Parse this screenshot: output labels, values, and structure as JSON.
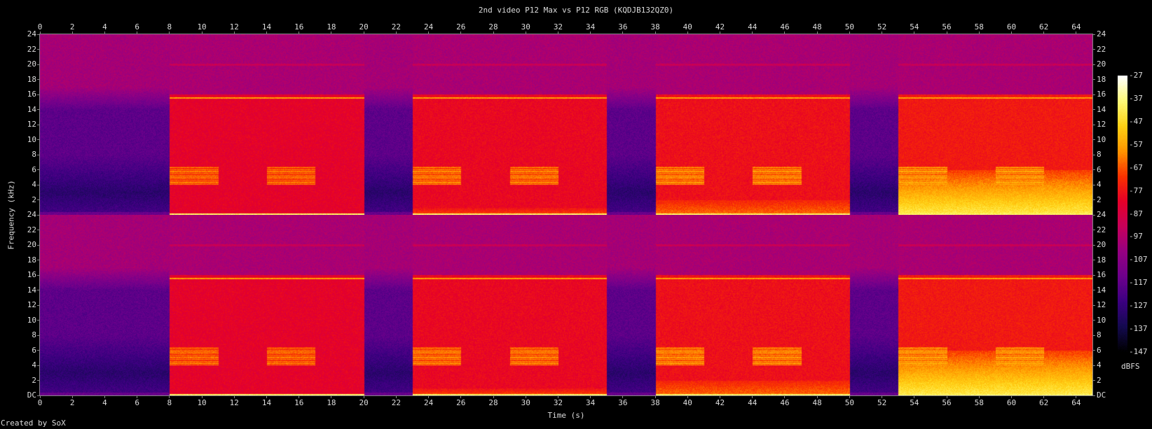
{
  "chart_data": {
    "type": "heatmap",
    "title": "2nd video P12 Max vs P12 RGB (KQDJB132QZ0)",
    "xlabel": "Time (s)",
    "ylabel": "Frequency (kHz)",
    "xlim": [
      0,
      65
    ],
    "ylim_per_channel": [
      0,
      24
    ],
    "channels": 2,
    "x_ticks": [
      "0",
      "2",
      "4",
      "6",
      "8",
      "10",
      "12",
      "14",
      "16",
      "18",
      "20",
      "22",
      "24",
      "26",
      "28",
      "30",
      "32",
      "34",
      "36",
      "38",
      "40",
      "42",
      "44",
      "46",
      "48",
      "50",
      "52",
      "54",
      "56",
      "58",
      "60",
      "62",
      "64"
    ],
    "y_ticks_top_channel": [
      "2",
      "4",
      "6",
      "8",
      "10",
      "12",
      "14",
      "16",
      "18",
      "20",
      "22",
      "24"
    ],
    "y_ticks_bottom_channel": [
      "DC",
      "2",
      "4",
      "6",
      "8",
      "10",
      "12",
      "14",
      "16",
      "18",
      "20",
      "22",
      "24"
    ],
    "colorbar": {
      "unit": "dBFS",
      "range": [
        -147,
        -27
      ],
      "ticks": [
        "-27",
        "-37",
        "-47",
        "-57",
        "-67",
        "-77",
        "-87",
        "-97",
        "-107",
        "-117",
        "-127",
        "-137",
        "-147"
      ]
    },
    "colormap": [
      "#000000",
      "#140a50",
      "#3c0082",
      "#6e008c",
      "#960082",
      "#c8005a",
      "#e60028",
      "#fa3200",
      "#ff9600",
      "#ffd214",
      "#fffa78",
      "#ffffff"
    ],
    "silent_intervals_s": [
      [
        0,
        8
      ],
      [
        20,
        23
      ],
      [
        35,
        38
      ],
      [
        50,
        53
      ]
    ],
    "signal_intervals_s": [
      [
        8,
        20
      ],
      [
        23,
        35
      ],
      [
        38,
        50
      ],
      [
        53,
        65
      ]
    ],
    "tone_burst_intervals_s": [
      [
        8,
        11
      ],
      [
        14,
        17
      ],
      [
        23,
        26
      ],
      [
        29,
        32
      ],
      [
        38,
        41
      ],
      [
        44,
        47
      ],
      [
        53,
        56
      ],
      [
        59,
        62
      ]
    ],
    "tone_band_khz": [
      4,
      6.5
    ],
    "steady_line_khz": 15.6
  },
  "footer": "Created by SoX"
}
